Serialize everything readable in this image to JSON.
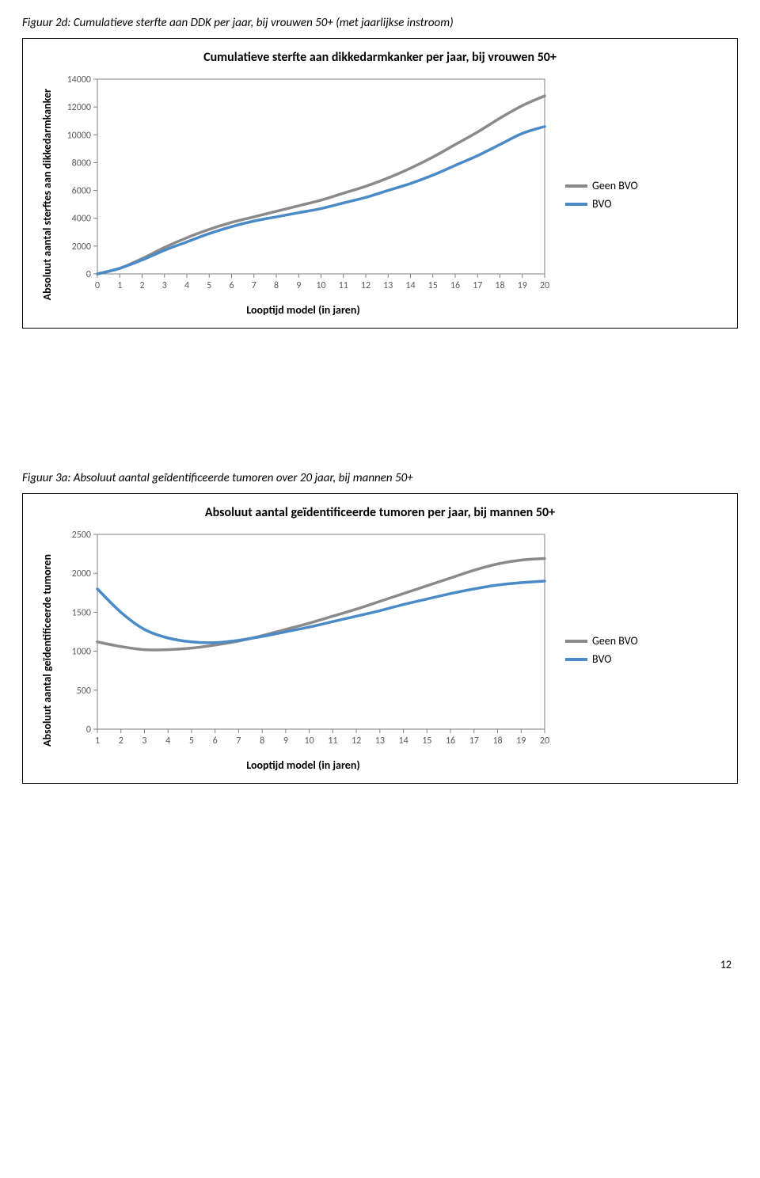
{
  "page_number": "12",
  "chart1": {
    "caption": "Figuur 2d: Cumulatieve sterfte aan DDK per jaar, bij vrouwen 50+ (met jaarlijkse instroom)",
    "type": "line",
    "title": "Cumulatieve sterfte aan dikkedarmkanker per jaar, bij vrouwen 50+",
    "ylabel": "Absoluut aantal sterftes aan dikkedarmkanker",
    "xlabel": "Looptijd model (in jaren)",
    "ylim": [
      0,
      14000
    ],
    "ytick_step": 2000,
    "yticks": [
      "0",
      "2000",
      "4000",
      "6000",
      "8000",
      "10000",
      "12000",
      "14000"
    ],
    "xlim": [
      0,
      20
    ],
    "xticks": [
      "0",
      "1",
      "2",
      "3",
      "4",
      "5",
      "6",
      "7",
      "8",
      "9",
      "10",
      "11",
      "12",
      "13",
      "14",
      "15",
      "16",
      "17",
      "18",
      "19",
      "20"
    ],
    "background_color": "#ffffff",
    "grid_color": "#808080",
    "tick_font_size": 12,
    "tick_color": "#595959",
    "line_width": 3.5,
    "series": [
      {
        "name": "Geen BVO",
        "color": "#8a8a8a",
        "x": [
          0,
          1,
          2,
          3,
          4,
          5,
          6,
          7,
          8,
          9,
          10,
          11,
          12,
          13,
          14,
          15,
          16,
          17,
          18,
          19,
          20
        ],
        "y": [
          0,
          400,
          1100,
          1900,
          2600,
          3200,
          3700,
          4100,
          4500,
          4900,
          5300,
          5800,
          6300,
          6900,
          7600,
          8400,
          9300,
          10200,
          11200,
          12100,
          12800
        ]
      },
      {
        "name": "BVO",
        "color": "#4a8bc7",
        "x": [
          0,
          1,
          2,
          3,
          4,
          5,
          6,
          7,
          8,
          9,
          10,
          11,
          12,
          13,
          14,
          15,
          16,
          17,
          18,
          19,
          20
        ],
        "y": [
          0,
          400,
          1000,
          1700,
          2300,
          2900,
          3400,
          3800,
          4100,
          4400,
          4700,
          5100,
          5500,
          6000,
          6500,
          7100,
          7800,
          8500,
          9300,
          10100,
          10600
        ]
      }
    ],
    "legend": [
      {
        "label": "Geen BVO",
        "color": "#8a8a8a"
      },
      {
        "label": "BVO",
        "color": "#4a8bc7"
      }
    ]
  },
  "chart2": {
    "caption": "Figuur 3a: Absoluut aantal geïdentificeerde tumoren over 20 jaar, bij mannen 50+",
    "type": "line",
    "title": "Absoluut aantal geïdentificeerde tumoren per jaar, bij mannen 50+",
    "ylabel": "Absoluut aantal geïdentificeerde tumoren",
    "xlabel": "Looptijd model (in jaren)",
    "ylim": [
      0,
      2500
    ],
    "ytick_step": 500,
    "yticks": [
      "0",
      "500",
      "1000",
      "1500",
      "2000",
      "2500"
    ],
    "xlim": [
      1,
      20
    ],
    "xticks": [
      "1",
      "2",
      "3",
      "4",
      "5",
      "6",
      "7",
      "8",
      "9",
      "10",
      "11",
      "12",
      "13",
      "14",
      "15",
      "16",
      "17",
      "18",
      "19",
      "20"
    ],
    "background_color": "#ffffff",
    "grid_color": "#808080",
    "tick_font_size": 12,
    "tick_color": "#595959",
    "line_width": 3.5,
    "series": [
      {
        "name": "Geen BVO",
        "color": "#8a8a8a",
        "x": [
          1,
          2,
          3,
          4,
          5,
          6,
          7,
          8,
          9,
          10,
          11,
          12,
          13,
          14,
          15,
          16,
          17,
          18,
          19,
          20
        ],
        "y": [
          1120,
          1060,
          1020,
          1020,
          1040,
          1080,
          1130,
          1200,
          1280,
          1360,
          1450,
          1540,
          1640,
          1740,
          1840,
          1940,
          2040,
          2120,
          2170,
          2190
        ]
      },
      {
        "name": "BVO",
        "color": "#4a8bc7",
        "x": [
          1,
          2,
          3,
          4,
          5,
          6,
          7,
          8,
          9,
          10,
          11,
          12,
          13,
          14,
          15,
          16,
          17,
          18,
          19,
          20
        ],
        "y": [
          1800,
          1500,
          1280,
          1170,
          1120,
          1110,
          1140,
          1190,
          1250,
          1310,
          1380,
          1450,
          1520,
          1600,
          1670,
          1740,
          1800,
          1850,
          1880,
          1900
        ]
      }
    ],
    "legend": [
      {
        "label": "Geen BVO",
        "color": "#8a8a8a"
      },
      {
        "label": "BVO",
        "color": "#4a8bc7"
      }
    ]
  }
}
